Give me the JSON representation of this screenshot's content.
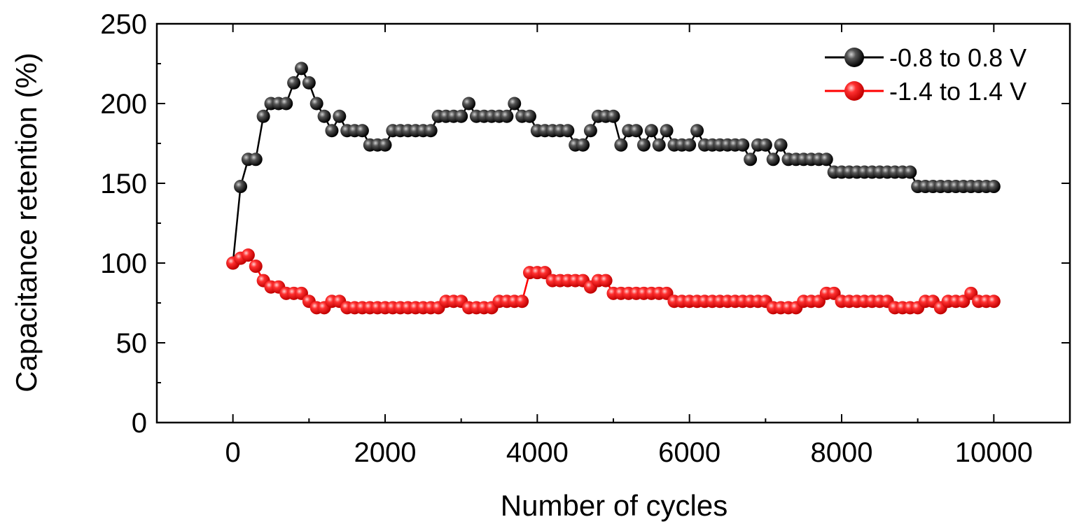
{
  "chart_data": {
    "type": "scatter",
    "xlabel": "Number of cycles",
    "ylabel": "Capacitance retention (%)",
    "xlim": [
      -1000,
      11000
    ],
    "ylim": [
      0,
      250
    ],
    "xticks": [
      0,
      2000,
      4000,
      6000,
      8000,
      10000
    ],
    "xtick_labels": [
      "0",
      "2000",
      "4000",
      "6000",
      "8000",
      "10000"
    ],
    "yticks": [
      0,
      50,
      100,
      150,
      200,
      250
    ],
    "ytick_labels": [
      "0",
      "50",
      "100",
      "150",
      "200",
      "250"
    ],
    "grid": false,
    "legend_position": "top-right",
    "series": [
      {
        "name": "-0.8 to 0.8 V",
        "color": "#000000",
        "marker": "sphere",
        "x": [
          0,
          100,
          200,
          300,
          400,
          500,
          600,
          700,
          800,
          900,
          1000,
          1100,
          1200,
          1300,
          1400,
          1500,
          1600,
          1700,
          1800,
          1900,
          2000,
          2100,
          2200,
          2300,
          2400,
          2500,
          2600,
          2700,
          2800,
          2900,
          3000,
          3100,
          3200,
          3300,
          3400,
          3500,
          3600,
          3700,
          3800,
          3900,
          4000,
          4100,
          4200,
          4300,
          4400,
          4500,
          4600,
          4700,
          4800,
          4900,
          5000,
          5100,
          5200,
          5300,
          5400,
          5500,
          5600,
          5700,
          5800,
          5900,
          6000,
          6100,
          6200,
          6300,
          6400,
          6500,
          6600,
          6700,
          6800,
          6900,
          7000,
          7100,
          7200,
          7300,
          7400,
          7500,
          7600,
          7700,
          7800,
          7900,
          8000,
          8100,
          8200,
          8300,
          8400,
          8500,
          8600,
          8700,
          8800,
          8900,
          9000,
          9100,
          9200,
          9300,
          9400,
          9500,
          9600,
          9700,
          9800,
          9900,
          10000
        ],
        "y": [
          100,
          148,
          165,
          165,
          192,
          200,
          200,
          200,
          213,
          222,
          213,
          200,
          192,
          183,
          192,
          183,
          183,
          183,
          174,
          174,
          174,
          183,
          183,
          183,
          183,
          183,
          183,
          192,
          192,
          192,
          192,
          200,
          192,
          192,
          192,
          192,
          192,
          200,
          192,
          192,
          183,
          183,
          183,
          183,
          183,
          174,
          174,
          183,
          192,
          192,
          192,
          174,
          183,
          183,
          174,
          183,
          174,
          183,
          174,
          174,
          174,
          183,
          174,
          174,
          174,
          174,
          174,
          174,
          165,
          174,
          174,
          165,
          174,
          165,
          165,
          165,
          165,
          165,
          165,
          157,
          157,
          157,
          157,
          157,
          157,
          157,
          157,
          157,
          157,
          157,
          148,
          148,
          148,
          148,
          148,
          148,
          148,
          148,
          148,
          148,
          148
        ]
      },
      {
        "name": "-1.4 to 1.4 V",
        "color": "#ff0000",
        "marker": "sphere",
        "x": [
          0,
          100,
          200,
          300,
          400,
          500,
          600,
          700,
          800,
          900,
          1000,
          1100,
          1200,
          1300,
          1400,
          1500,
          1600,
          1700,
          1800,
          1900,
          2000,
          2100,
          2200,
          2300,
          2400,
          2500,
          2600,
          2700,
          2800,
          2900,
          3000,
          3100,
          3200,
          3300,
          3400,
          3500,
          3600,
          3700,
          3800,
          3900,
          4000,
          4100,
          4200,
          4300,
          4400,
          4500,
          4600,
          4700,
          4800,
          4900,
          5000,
          5100,
          5200,
          5300,
          5400,
          5500,
          5600,
          5700,
          5800,
          5900,
          6000,
          6100,
          6200,
          6300,
          6400,
          6500,
          6600,
          6700,
          6800,
          6900,
          7000,
          7100,
          7200,
          7300,
          7400,
          7500,
          7600,
          7700,
          7800,
          7900,
          8000,
          8100,
          8200,
          8300,
          8400,
          8500,
          8600,
          8700,
          8800,
          8900,
          9000,
          9100,
          9200,
          9300,
          9400,
          9500,
          9600,
          9700,
          9800,
          9900,
          10000
        ],
        "y": [
          100,
          103,
          105,
          98,
          89,
          85,
          85,
          81,
          81,
          81,
          76,
          72,
          72,
          76,
          76,
          72,
          72,
          72,
          72,
          72,
          72,
          72,
          72,
          72,
          72,
          72,
          72,
          72,
          76,
          76,
          76,
          72,
          72,
          72,
          72,
          76,
          76,
          76,
          76,
          94,
          94,
          94,
          89,
          89,
          89,
          89,
          89,
          85,
          89,
          89,
          81,
          81,
          81,
          81,
          81,
          81,
          81,
          81,
          76,
          76,
          76,
          76,
          76,
          76,
          76,
          76,
          76,
          76,
          76,
          76,
          76,
          72,
          72,
          72,
          72,
          76,
          76,
          76,
          81,
          81,
          76,
          76,
          76,
          76,
          76,
          76,
          76,
          72,
          72,
          72,
          72,
          76,
          76,
          72,
          76,
          76,
          76,
          81,
          76,
          76,
          76
        ]
      }
    ]
  }
}
